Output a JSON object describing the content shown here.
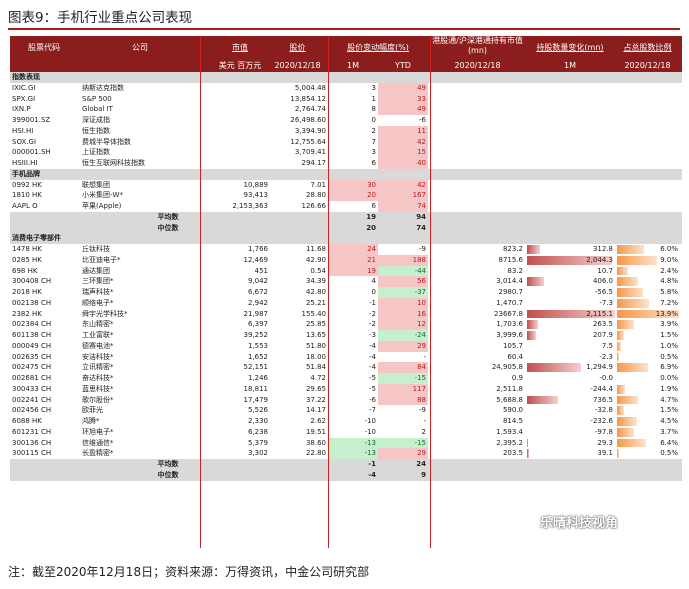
{
  "title": "图表9：手机行业重点公司表现",
  "note": "注：截至2020年12月18日；资料来源：万得资讯，中金公司研究部",
  "watermark": "乐晴科技视角",
  "header": {
    "code": "股票代码",
    "company": "公司",
    "mktcap": "市值",
    "price": "股价",
    "change": "股价变动幅度(%)",
    "holding": "港股通/沪深港通持有市值(mn)",
    "holdchg": "持股数量变化(mn)",
    "holdpct": "占总股数比例",
    "mktcap_unit": "美元 百万元",
    "price_date": "2020/12/18",
    "m1": "1M",
    "ytd": "YTD",
    "hold_date": "2020/12/18",
    "hc_m1": "1M",
    "hp_date": "2020/12/18"
  },
  "colors": {
    "pos_bg": "#f6c6c6",
    "neg_bg": "#c6efce",
    "bar_red": "#c0504d",
    "bar_orange": "#f79646",
    "header_bg": "#8c1d1d"
  },
  "rows": [
    {
      "type": "section",
      "label": "指数表现"
    },
    {
      "code": "IXIC.GI",
      "name": "纳斯达克指数",
      "cap": "",
      "price": "5,004.48",
      "m1": "3",
      "ytd": "49",
      "m1c": "",
      "ytdc": "pos"
    },
    {
      "code": "SPX.GI",
      "name": "S&P 500",
      "cap": "",
      "price": "13,854.12",
      "m1": "1",
      "ytd": "33",
      "m1c": "",
      "ytdc": "pos"
    },
    {
      "code": "IXN.P",
      "name": "Global IT",
      "cap": "",
      "price": "2,764.74",
      "m1": "8",
      "ytd": "49",
      "m1c": "",
      "ytdc": "pos"
    },
    {
      "code": "399001.SZ",
      "name": "深证成指",
      "cap": "",
      "price": "26,498.60",
      "m1": "0",
      "ytd": "-6",
      "m1c": "",
      "ytdc": ""
    },
    {
      "code": "HSI.HI",
      "name": "恒生指数",
      "cap": "",
      "price": "3,394.90",
      "m1": "2",
      "ytd": "11",
      "m1c": "",
      "ytdc": "pos"
    },
    {
      "code": "SOX.GI",
      "name": "费城半导体指数",
      "cap": "",
      "price": "12,755.64",
      "m1": "7",
      "ytd": "42",
      "m1c": "",
      "ytdc": "pos"
    },
    {
      "code": "000001.SH",
      "name": "上证指数",
      "cap": "",
      "price": "3,709.41",
      "m1": "3",
      "ytd": "15",
      "m1c": "",
      "ytdc": "pos"
    },
    {
      "code": "HSIII.HI",
      "name": "恒生互联网科技指数",
      "cap": "",
      "price": "294.17",
      "m1": "6",
      "ytd": "40",
      "m1c": "",
      "ytdc": "pos"
    },
    {
      "type": "section",
      "label": "手机品牌"
    },
    {
      "code": "0992 HK",
      "name": "联想集团",
      "cap": "10,889",
      "price": "7.01",
      "m1": "30",
      "ytd": "42",
      "m1c": "pos",
      "ytdc": "pos"
    },
    {
      "code": "1810 HK",
      "name": "小米集团-W*",
      "cap": "93,413",
      "price": "28.80",
      "m1": "20",
      "ytd": "167",
      "m1c": "pos",
      "ytdc": "pos"
    },
    {
      "code": "AAPL O",
      "name": "苹果(Apple)",
      "cap": "2,153,363",
      "price": "126.66",
      "m1": "6",
      "ytd": "74",
      "m1c": "",
      "ytdc": "pos"
    },
    {
      "type": "avg",
      "label": "平均数",
      "m1": "19",
      "ytd": "94"
    },
    {
      "type": "avg",
      "label": "中位数",
      "m1": "20",
      "ytd": "74"
    },
    {
      "type": "section",
      "label": "消费电子零部件"
    },
    {
      "code": "1478 HK",
      "name": "丘钛科技",
      "cap": "1,766",
      "price": "11.68",
      "m1": "24",
      "ytd": "-9",
      "m1c": "pos",
      "ytdc": "",
      "hold": "823.2",
      "hc": "312.8",
      "hp": "6.0%"
    },
    {
      "code": "0285 HK",
      "name": "比亚迪电子*",
      "cap": "12,469",
      "price": "42.90",
      "m1": "21",
      "ytd": "188",
      "m1c": "pos",
      "ytdc": "pos",
      "hold": "8715.6",
      "hc": "2,044.3",
      "hp": "9.0%"
    },
    {
      "code": "698 HK",
      "name": "通达集团",
      "cap": "451",
      "price": "0.54",
      "m1": "19",
      "ytd": "-44",
      "m1c": "pos",
      "ytdc": "neg",
      "hold": "83.2",
      "hc": "10.7",
      "hp": "2.4%"
    },
    {
      "code": "300408 CH",
      "name": "三环集团*",
      "cap": "9,042",
      "price": "34.39",
      "m1": "4",
      "ytd": "56",
      "m1c": "",
      "ytdc": "pos",
      "hold": "3,014.4",
      "hc": "406.0",
      "hp": "4.8%"
    },
    {
      "code": "2018 HK",
      "name": "瑞声科技*",
      "cap": "6,672",
      "price": "42.80",
      "m1": "0",
      "ytd": "-37",
      "m1c": "",
      "ytdc": "neg",
      "hold": "2980.7",
      "hc": "-56.5",
      "hp": "5.8%"
    },
    {
      "code": "002138 CH",
      "name": "顺络电子*",
      "cap": "2,942",
      "price": "25.21",
      "m1": "-1",
      "ytd": "10",
      "m1c": "",
      "ytdc": "pos",
      "hold": "1,470.7",
      "hc": "-7.3",
      "hp": "7.2%"
    },
    {
      "code": "2382 HK",
      "name": "舜宇光学科技*",
      "cap": "21,987",
      "price": "155.40",
      "m1": "-2",
      "ytd": "16",
      "m1c": "",
      "ytdc": "pos",
      "hold": "23667.8",
      "hc": "2,115.1",
      "hp": "13.9%"
    },
    {
      "code": "002384 CH",
      "name": "东山精密*",
      "cap": "6,397",
      "price": "25.85",
      "m1": "-2",
      "ytd": "12",
      "m1c": "",
      "ytdc": "pos",
      "hold": "1,703.6",
      "hc": "263.5",
      "hp": "3.9%"
    },
    {
      "code": "601138 CH",
      "name": "工业富联*",
      "cap": "39,252",
      "price": "13.65",
      "m1": "-3",
      "ytd": "-24",
      "m1c": "",
      "ytdc": "neg",
      "hold": "3,999.6",
      "hc": "207.9",
      "hp": "1.5%"
    },
    {
      "code": "000049 CH",
      "name": "德赛电池*",
      "cap": "1,553",
      "price": "51.80",
      "m1": "-4",
      "ytd": "29",
      "m1c": "",
      "ytdc": "pos",
      "hold": "105.7",
      "hc": "7.5",
      "hp": "1.0%"
    },
    {
      "code": "002635 CH",
      "name": "安洁科技*",
      "cap": "1,652",
      "price": "18.00",
      "m1": "-4",
      "ytd": "-",
      "m1c": "",
      "ytdc": "",
      "hold": "60.4",
      "hc": "-2.3",
      "hp": "0.5%"
    },
    {
      "code": "002475 CH",
      "name": "立讯精密*",
      "cap": "52,151",
      "price": "51.84",
      "m1": "-4",
      "ytd": "84",
      "m1c": "",
      "ytdc": "pos",
      "hold": "24,905.8",
      "hc": "1,294.9",
      "hp": "6.9%"
    },
    {
      "code": "002681 CH",
      "name": "奋达科技*",
      "cap": "1,246",
      "price": "4.72",
      "m1": "-5",
      "ytd": "-15",
      "m1c": "",
      "ytdc": "neg",
      "hold": "0.9",
      "hc": "-0.0",
      "hp": "0.0%"
    },
    {
      "code": "300433 CH",
      "name": "蓝思科技*",
      "cap": "18,811",
      "price": "29.65",
      "m1": "-5",
      "ytd": "117",
      "m1c": "",
      "ytdc": "pos",
      "hold": "2,511.8",
      "hc": "-244.4",
      "hp": "1.9%"
    },
    {
      "code": "002241 CH",
      "name": "歌尔股份*",
      "cap": "17,479",
      "price": "37.22",
      "m1": "-6",
      "ytd": "88",
      "m1c": "",
      "ytdc": "pos",
      "hold": "5,688.8",
      "hc": "736.5",
      "hp": "4.7%"
    },
    {
      "code": "002456 CH",
      "name": "欧菲光",
      "cap": "5,526",
      "price": "14.17",
      "m1": "-7",
      "ytd": "-9",
      "m1c": "",
      "ytdc": "",
      "hold": "590.0",
      "hc": "-32.8",
      "hp": "1.5%"
    },
    {
      "code": "6088 HK",
      "name": "鸿腾*",
      "cap": "2,330",
      "price": "2.62",
      "m1": "-10",
      "ytd": "-",
      "m1c": "",
      "ytdc": "",
      "hold": "814.5",
      "hc": "-232.6",
      "hp": "4.5%"
    },
    {
      "code": "601231 CH",
      "name": "环旭电子*",
      "cap": "6,238",
      "price": "19.51",
      "m1": "-10",
      "ytd": "2",
      "m1c": "",
      "ytdc": "",
      "hold": "1,593.4",
      "hc": "-97.8",
      "hp": "3.7%"
    },
    {
      "code": "300136 CH",
      "name": "信维通信*",
      "cap": "5,379",
      "price": "38.60",
      "m1": "-13",
      "ytd": "-15",
      "m1c": "neg",
      "ytdc": "neg",
      "hold": "2,395.2",
      "hc": "29.3",
      "hp": "6.4%"
    },
    {
      "code": "300115 CH",
      "name": "长盈精密*",
      "cap": "3,302",
      "price": "22.80",
      "m1": "-13",
      "ytd": "29",
      "m1c": "neg",
      "ytdc": "pos",
      "hold": "203.5",
      "hc": "39.1",
      "hp": "0.5%"
    },
    {
      "type": "avg",
      "label": "平均数",
      "m1": "-1",
      "ytd": "24"
    },
    {
      "type": "avg",
      "label": "中位数",
      "m1": "-4",
      "ytd": "9"
    }
  ]
}
